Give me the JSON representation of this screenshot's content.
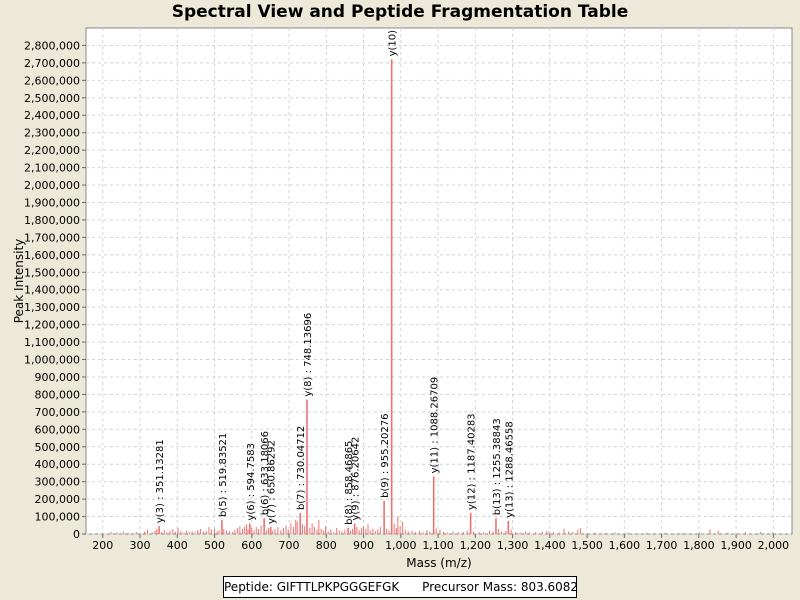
{
  "chart_data": {
    "type": "bar",
    "title": "Spectral View and Peptide Fragmentation Table",
    "xlabel": "Mass (m/z)",
    "ylabel": "Peak Intensity",
    "xlim": [
      155,
      2050
    ],
    "ylim": [
      0,
      2900000
    ],
    "xticks": [
      200,
      300,
      400,
      500,
      600,
      700,
      800,
      900,
      1000,
      1100,
      1200,
      1300,
      1400,
      1500,
      1600,
      1700,
      1800,
      1900,
      2000
    ],
    "xtick_labels": [
      "200",
      "300",
      "400",
      "500",
      "600",
      "700",
      "800",
      "900",
      "1,000",
      "1,100",
      "1,200",
      "1,300",
      "1,400",
      "1,500",
      "1,600",
      "1,700",
      "1,800",
      "1,900",
      "2,000"
    ],
    "yticks": [
      0,
      100000,
      200000,
      300000,
      400000,
      500000,
      600000,
      700000,
      800000,
      900000,
      1000000,
      1100000,
      1200000,
      1300000,
      1400000,
      1500000,
      1600000,
      1700000,
      1800000,
      1900000,
      2000000,
      2100000,
      2200000,
      2300000,
      2400000,
      2500000,
      2600000,
      2700000,
      2800000
    ],
    "ytick_labels": [
      "0",
      "100,000",
      "200,000",
      "300,000",
      "400,000",
      "500,000",
      "600,000",
      "700,000",
      "800,000",
      "900,000",
      "1,000,000",
      "1,100,000",
      "1,200,000",
      "1,300,000",
      "1,400,000",
      "1,500,000",
      "1,600,000",
      "1,700,000",
      "1,800,000",
      "1,900,000",
      "2,000,000",
      "2,100,000",
      "2,200,000",
      "2,300,000",
      "2,400,000",
      "2,500,000",
      "2,600,000",
      "2,700,000",
      "2,800,000"
    ],
    "grid": true,
    "bar_color": "#f07070",
    "annotated_peaks": [
      {
        "x": 351.13281,
        "y": 45000,
        "label": "y(3) : 351.13281"
      },
      {
        "x": 519.83521,
        "y": 80000,
        "label": "b(5) : 519.83521"
      },
      {
        "x": 594.7583,
        "y": 60000,
        "label": "y(6) : 594.7583"
      },
      {
        "x": 633.18066,
        "y": 90000,
        "label": "b(6) : 633.18066"
      },
      {
        "x": 650.86292,
        "y": 40000,
        "label": "y(7) : 650.86292"
      },
      {
        "x": 730.04712,
        "y": 120000,
        "label": "b(7) : 730.04712"
      },
      {
        "x": 748.13696,
        "y": 770000,
        "label": "y(8) : 748.13696"
      },
      {
        "x": 858.46865,
        "y": 35000,
        "label": "b(8) : 858.46865"
      },
      {
        "x": 876.20642,
        "y": 60000,
        "label": "y(9) : 876.20642"
      },
      {
        "x": 955.20276,
        "y": 190000,
        "label": "b(9) : 955.20276"
      },
      {
        "x": 975.5,
        "y": 2720000,
        "label": "y(10)"
      },
      {
        "x": 1088.26709,
        "y": 330000,
        "label": "y(11) : 1088.26709"
      },
      {
        "x": 1187.40283,
        "y": 120000,
        "label": "y(12) : 1187.40283"
      },
      {
        "x": 1255.38843,
        "y": 90000,
        "label": "b(13) : 1255.38843"
      },
      {
        "x": 1288.46558,
        "y": 75000,
        "label": "y(13) : 1288.46558"
      }
    ],
    "peaks": [
      [
        222,
        12000
      ],
      [
        238,
        9000
      ],
      [
        255,
        15000
      ],
      [
        268,
        8000
      ],
      [
        290,
        11000
      ],
      [
        312,
        14000
      ],
      [
        320,
        25000
      ],
      [
        333,
        10000
      ],
      [
        340,
        20000
      ],
      [
        345,
        30000
      ],
      [
        358,
        12000
      ],
      [
        365,
        22000
      ],
      [
        372,
        8000
      ],
      [
        380,
        18000
      ],
      [
        388,
        28000
      ],
      [
        395,
        12000
      ],
      [
        402,
        35000
      ],
      [
        410,
        15000
      ],
      [
        418,
        9000
      ],
      [
        425,
        20000
      ],
      [
        432,
        12000
      ],
      [
        440,
        16000
      ],
      [
        448,
        10000
      ],
      [
        455,
        22000
      ],
      [
        462,
        28000
      ],
      [
        470,
        14000
      ],
      [
        478,
        18000
      ],
      [
        485,
        40000
      ],
      [
        492,
        25000
      ],
      [
        500,
        30000
      ],
      [
        507,
        15000
      ],
      [
        512,
        22000
      ],
      [
        525,
        28000
      ],
      [
        532,
        20000
      ],
      [
        540,
        16000
      ],
      [
        548,
        12000
      ],
      [
        555,
        25000
      ],
      [
        562,
        35000
      ],
      [
        568,
        45000
      ],
      [
        575,
        30000
      ],
      [
        580,
        40000
      ],
      [
        586,
        55000
      ],
      [
        590,
        25000
      ],
      [
        600,
        35000
      ],
      [
        606,
        20000
      ],
      [
        612,
        40000
      ],
      [
        618,
        28000
      ],
      [
        625,
        50000
      ],
      [
        640,
        22000
      ],
      [
        645,
        35000
      ],
      [
        656,
        18000
      ],
      [
        662,
        28000
      ],
      [
        670,
        40000
      ],
      [
        678,
        22000
      ],
      [
        685,
        35000
      ],
      [
        692,
        50000
      ],
      [
        698,
        25000
      ],
      [
        705,
        60000
      ],
      [
        712,
        40000
      ],
      [
        718,
        80000
      ],
      [
        722,
        70000
      ],
      [
        736,
        55000
      ],
      [
        742,
        45000
      ],
      [
        756,
        35000
      ],
      [
        762,
        60000
      ],
      [
        768,
        40000
      ],
      [
        775,
        25000
      ],
      [
        780,
        80000
      ],
      [
        786,
        30000
      ],
      [
        792,
        20000
      ],
      [
        798,
        45000
      ],
      [
        805,
        15000
      ],
      [
        812,
        28000
      ],
      [
        820,
        12000
      ],
      [
        828,
        35000
      ],
      [
        835,
        20000
      ],
      [
        842,
        15000
      ],
      [
        850,
        25000
      ],
      [
        865,
        18000
      ],
      [
        870,
        30000
      ],
      [
        882,
        40000
      ],
      [
        888,
        22000
      ],
      [
        895,
        35000
      ],
      [
        900,
        45000
      ],
      [
        906,
        28000
      ],
      [
        912,
        55000
      ],
      [
        918,
        20000
      ],
      [
        925,
        30000
      ],
      [
        932,
        15000
      ],
      [
        938,
        25000
      ],
      [
        945,
        40000
      ],
      [
        962,
        30000
      ],
      [
        968,
        20000
      ],
      [
        982,
        60000
      ],
      [
        988,
        35000
      ],
      [
        992,
        100000
      ],
      [
        998,
        45000
      ],
      [
        1005,
        70000
      ],
      [
        1012,
        25000
      ],
      [
        1020,
        15000
      ],
      [
        1030,
        20000
      ],
      [
        1040,
        12000
      ],
      [
        1050,
        18000
      ],
      [
        1060,
        10000
      ],
      [
        1070,
        22000
      ],
      [
        1078,
        15000
      ],
      [
        1095,
        30000
      ],
      [
        1105,
        25000
      ],
      [
        1115,
        12000
      ],
      [
        1125,
        8000
      ],
      [
        1140,
        15000
      ],
      [
        1155,
        10000
      ],
      [
        1168,
        12000
      ],
      [
        1178,
        18000
      ],
      [
        1195,
        15000
      ],
      [
        1210,
        12000
      ],
      [
        1222,
        9000
      ],
      [
        1238,
        20000
      ],
      [
        1248,
        14000
      ],
      [
        1262,
        30000
      ],
      [
        1270,
        15000
      ],
      [
        1282,
        18000
      ],
      [
        1296,
        25000
      ],
      [
        1308,
        12000
      ],
      [
        1320,
        9000
      ],
      [
        1335,
        15000
      ],
      [
        1345,
        8000
      ],
      [
        1362,
        10000
      ],
      [
        1380,
        12000
      ],
      [
        1392,
        18000
      ],
      [
        1398,
        14000
      ],
      [
        1410,
        10000
      ],
      [
        1425,
        8000
      ],
      [
        1438,
        30000
      ],
      [
        1450,
        15000
      ],
      [
        1462,
        12000
      ],
      [
        1475,
        25000
      ],
      [
        1482,
        35000
      ],
      [
        1520,
        8000
      ],
      [
        1548,
        6000
      ],
      [
        1575,
        9000
      ],
      [
        1610,
        7000
      ],
      [
        1660,
        8000
      ],
      [
        1708,
        6000
      ],
      [
        1755,
        7000
      ],
      [
        1802,
        9000
      ],
      [
        1830,
        25000
      ],
      [
        1852,
        18000
      ],
      [
        1878,
        8000
      ],
      [
        1925,
        10000
      ],
      [
        1965,
        12000
      ],
      [
        1998,
        9000
      ]
    ]
  },
  "legend": {
    "peptide_label": "Peptide:",
    "peptide": "GIFTTLPKPGGGEFGK",
    "precursor_label": "Precursor Mass:",
    "precursor_mass": "803.6082"
  }
}
